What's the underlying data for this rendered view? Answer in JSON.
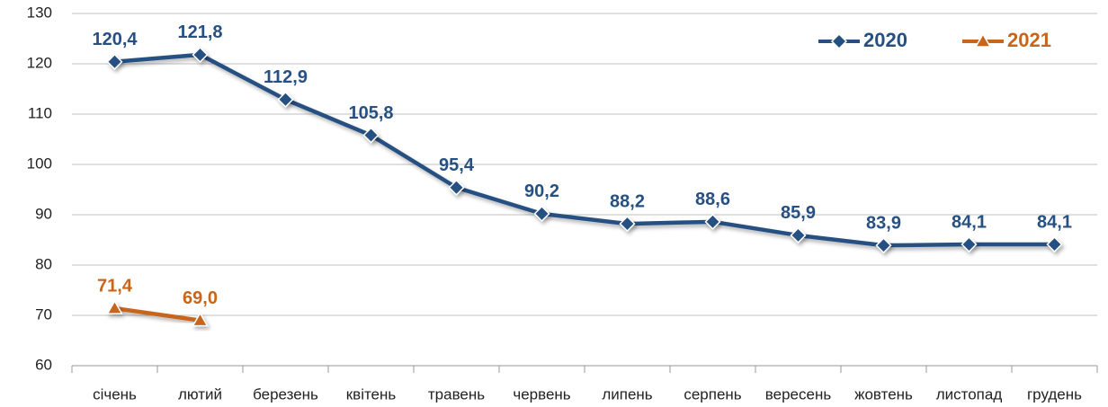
{
  "chart_data": {
    "type": "line",
    "categories": [
      "січень",
      "лютий",
      "березень",
      "квітень",
      "травень",
      "червень",
      "липень",
      "серпень",
      "вересень",
      "жовтень",
      "листопад",
      "грудень"
    ],
    "series": [
      {
        "name": "2020",
        "color": "#265082",
        "marker": "diamond",
        "values": [
          120.4,
          121.8,
          112.9,
          105.8,
          95.4,
          90.2,
          88.2,
          88.6,
          85.9,
          83.9,
          84.1,
          84.1
        ],
        "value_labels": [
          "120,4",
          "121,8",
          "112,9",
          "105,8",
          "95,4",
          "90,2",
          "88,2",
          "88,6",
          "85,9",
          "83,9",
          "84,1",
          "84,1"
        ]
      },
      {
        "name": "2021",
        "color": "#c8651b",
        "marker": "triangle",
        "values": [
          71.4,
          69.0,
          null,
          null,
          null,
          null,
          null,
          null,
          null,
          null,
          null,
          null
        ],
        "value_labels": [
          "71,4",
          "69,0",
          null,
          null,
          null,
          null,
          null,
          null,
          null,
          null,
          null,
          null
        ]
      }
    ],
    "ylim": [
      60,
      130
    ],
    "yticks": [
      60,
      70,
      80,
      90,
      100,
      110,
      120,
      130
    ],
    "grid": true,
    "legend": "upper right"
  }
}
